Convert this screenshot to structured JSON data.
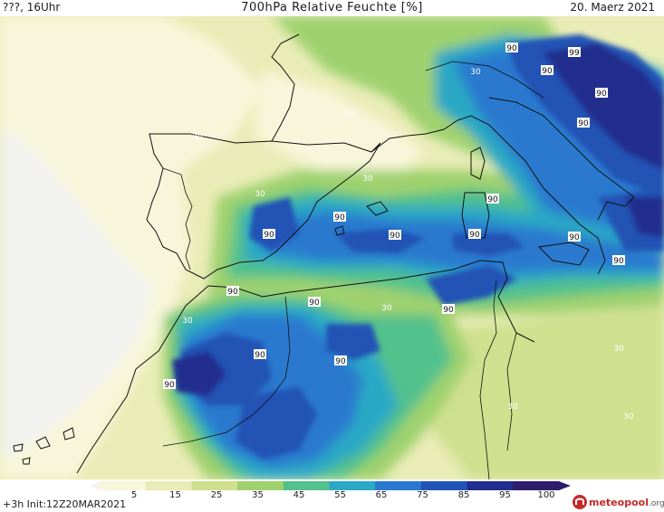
{
  "header": {
    "left": "???, 16Uhr",
    "center": "700hPa Relative Feuchte [%]",
    "right": "20. Maerz 2021"
  },
  "footer": {
    "init": "+3h  Init:12Z20MAR2021"
  },
  "brand": {
    "name_part1": "meteo",
    "name_part2": "pool",
    "name_part3": ".org"
  },
  "legend": {
    "tick_labels": [
      "5",
      "15",
      "25",
      "35",
      "45",
      "55",
      "65",
      "75",
      "85",
      "95",
      "100"
    ],
    "colors": [
      "#f2f2f0",
      "#f7f6da",
      "#e9ecb6",
      "#cfe08e",
      "#9fd16e",
      "#52c18c",
      "#2aa8c4",
      "#2b79cf",
      "#2352b5",
      "#232d8d",
      "#2d1d6a"
    ]
  },
  "map": {
    "contour_labels": [
      {
        "text": "30"
      },
      {
        "text": "30"
      },
      {
        "text": "30"
      },
      {
        "text": "30"
      },
      {
        "text": "30"
      },
      {
        "text": "30"
      },
      {
        "text": "30"
      },
      {
        "text": "30"
      },
      {
        "text": "30"
      },
      {
        "text": "30"
      },
      {
        "text": "90"
      },
      {
        "text": "90"
      },
      {
        "text": "90"
      },
      {
        "text": "90"
      },
      {
        "text": "90"
      },
      {
        "text": "90"
      },
      {
        "text": "90"
      },
      {
        "text": "90"
      },
      {
        "text": "90"
      },
      {
        "text": "90"
      },
      {
        "text": "90"
      },
      {
        "text": "90"
      },
      {
        "text": "90"
      },
      {
        "text": "90"
      },
      {
        "text": "90"
      },
      {
        "text": "90"
      },
      {
        "text": "90"
      },
      {
        "text": "99"
      }
    ]
  }
}
